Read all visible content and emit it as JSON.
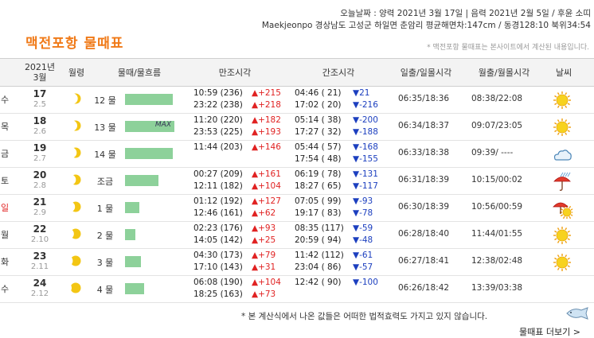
{
  "page": {
    "title": "맥전포항 물때표",
    "info_line1": "오늘날짜 : 양력 2021년 3월 17일 | 음력 2021년 2월 5일 / 후윤 소띠",
    "info_line2": "Maekjeonpo 경상남도 고성군 하일면 춘암리 평균해면차:147cm / 동경128:10 북위34:54",
    "note": "* 맥전포항 물때표는 본사이트에서 계산된 내용입니다.",
    "footer_note": "* 본 계산식에서 나온 값들은 어떠한 법적효력도 가지고 있지 않습니다.",
    "more_link": "물때표 더보기 >"
  },
  "header": {
    "date_line1": "2021년",
    "date_line2": "3월",
    "age": "월령",
    "tide": "물때/물흐름",
    "high": "만조시각",
    "low": "간조시각",
    "sun": "일출/일몰시각",
    "moon": "월출/월몰시각",
    "weather": "날씨"
  },
  "colors": {
    "title": "#f07a18",
    "bar": "#8dd19a",
    "rise": "#e02222",
    "fall": "#1c3fbf",
    "sunday": "#e02222"
  },
  "rows": [
    {
      "dow": "수",
      "dow_color": "#333333",
      "day": "17",
      "lunar": "2.5",
      "moon_phase": 0.15,
      "mul": "12 물",
      "flow": 0.6,
      "flow_text": "",
      "high1": "10:59 (236)",
      "high1_d": "▲+215",
      "high2": "23:22 (238)",
      "high2_d": "▲+218",
      "low1": "04:46 ( 21)",
      "low1_d": "▼21",
      "low2": "17:02 ( 20)",
      "low2_d": "▼-216",
      "sun": "06:35/18:36",
      "moon": "08:38/22:08",
      "weather": "sun-icon"
    },
    {
      "dow": "목",
      "dow_color": "#333333",
      "day": "18",
      "lunar": "2.6",
      "moon_phase": 0.2,
      "mul": "13 물",
      "flow": 0.62,
      "flow_text": "MAX",
      "high1": "11:20 (220)",
      "high1_d": "▲+182",
      "high2": "23:53 (225)",
      "high2_d": "▲+193",
      "low1": "05:14 ( 38)",
      "low1_d": "▼-200",
      "low2": "17:27 ( 32)",
      "low2_d": "▼-188",
      "sun": "06:34/18:37",
      "moon": "09:07/23:05",
      "weather": "sun-icon"
    },
    {
      "dow": "금",
      "dow_color": "#333333",
      "day": "19",
      "lunar": "2.7",
      "moon_phase": 0.25,
      "mul": "14 물",
      "flow": 0.6,
      "flow_text": "",
      "high1": "11:44 (203)",
      "high1_d": "▲+146",
      "high2": "",
      "high2_d": "",
      "low1": "05:44 ( 57)",
      "low1_d": "▼-168",
      "low2": "17:54 ( 48)",
      "low2_d": "▼-155",
      "sun": "06:33/18:38",
      "moon": "09:39/ ----",
      "weather": "cloud-icon"
    },
    {
      "dow": "토",
      "dow_color": "#333333",
      "day": "20",
      "lunar": "2.8",
      "moon_phase": 0.32,
      "mul": "조금",
      "flow": 0.42,
      "flow_text": "",
      "high1": "00:27 (209)",
      "high1_d": "▲+161",
      "high2": "12:11 (182)",
      "high2_d": "▲+104",
      "low1": "06:19 ( 78)",
      "low1_d": "▼-131",
      "low2": "18:27 ( 65)",
      "low2_d": "▼-117",
      "sun": "06:31/18:39",
      "moon": "10:15/00:02",
      "weather": "rain-umbrella-icon"
    },
    {
      "dow": "일",
      "dow_color": "#e02222",
      "day": "21",
      "lunar": "2.9",
      "moon_phase": 0.4,
      "mul": "1 물",
      "flow": 0.18,
      "flow_text": "",
      "high1": "01:12 (192)",
      "high1_d": "▲+127",
      "high2": "12:46 (161)",
      "high2_d": "▲+62",
      "low1": "07:05 ( 99)",
      "low1_d": "▼-93",
      "low2": "19:17 ( 83)",
      "low2_d": "▼-78",
      "sun": "06:30/18:39",
      "moon": "10:56/00:59",
      "weather": "umbrella-sun-icon"
    },
    {
      "dow": "월",
      "dow_color": "#333333",
      "day": "22",
      "lunar": "2.10",
      "moon_phase": 0.5,
      "mul": "2 물",
      "flow": 0.13,
      "flow_text": "",
      "high1": "02:23 (176)",
      "high1_d": "▲+93",
      "high2": "14:05 (142)",
      "high2_d": "▲+25",
      "low1": "08:35 (117)",
      "low1_d": "▼-59",
      "low2": "20:59 ( 94)",
      "low2_d": "▼-48",
      "sun": "06:28/18:40",
      "moon": "11:44/01:55",
      "weather": "sun-icon"
    },
    {
      "dow": "화",
      "dow_color": "#333333",
      "day": "23",
      "lunar": "2.11",
      "moon_phase": 0.6,
      "mul": "3 물",
      "flow": 0.2,
      "flow_text": "",
      "high1": "04:30 (173)",
      "high1_d": "▲+79",
      "high2": "17:10 (143)",
      "high2_d": "▲+31",
      "low1": "11:42 (112)",
      "low1_d": "▼-61",
      "low2": "23:04 ( 86)",
      "low2_d": "▼-57",
      "sun": "06:27/18:41",
      "moon": "12:38/02:48",
      "weather": "sun-icon"
    },
    {
      "dow": "수",
      "dow_color": "#333333",
      "day": "24",
      "lunar": "2.12",
      "moon_phase": 0.7,
      "mul": "4 물",
      "flow": 0.24,
      "flow_text": "",
      "high1": "06:08 (190)",
      "high1_d": "▲+104",
      "high2": "18:25 (163)",
      "high2_d": "▲+73",
      "low1": "12:42 ( 90)",
      "low1_d": "▼-100",
      "low2": "",
      "low2_d": "",
      "sun": "06:26/18:42",
      "moon": "13:39/03:38",
      "weather": ""
    }
  ]
}
